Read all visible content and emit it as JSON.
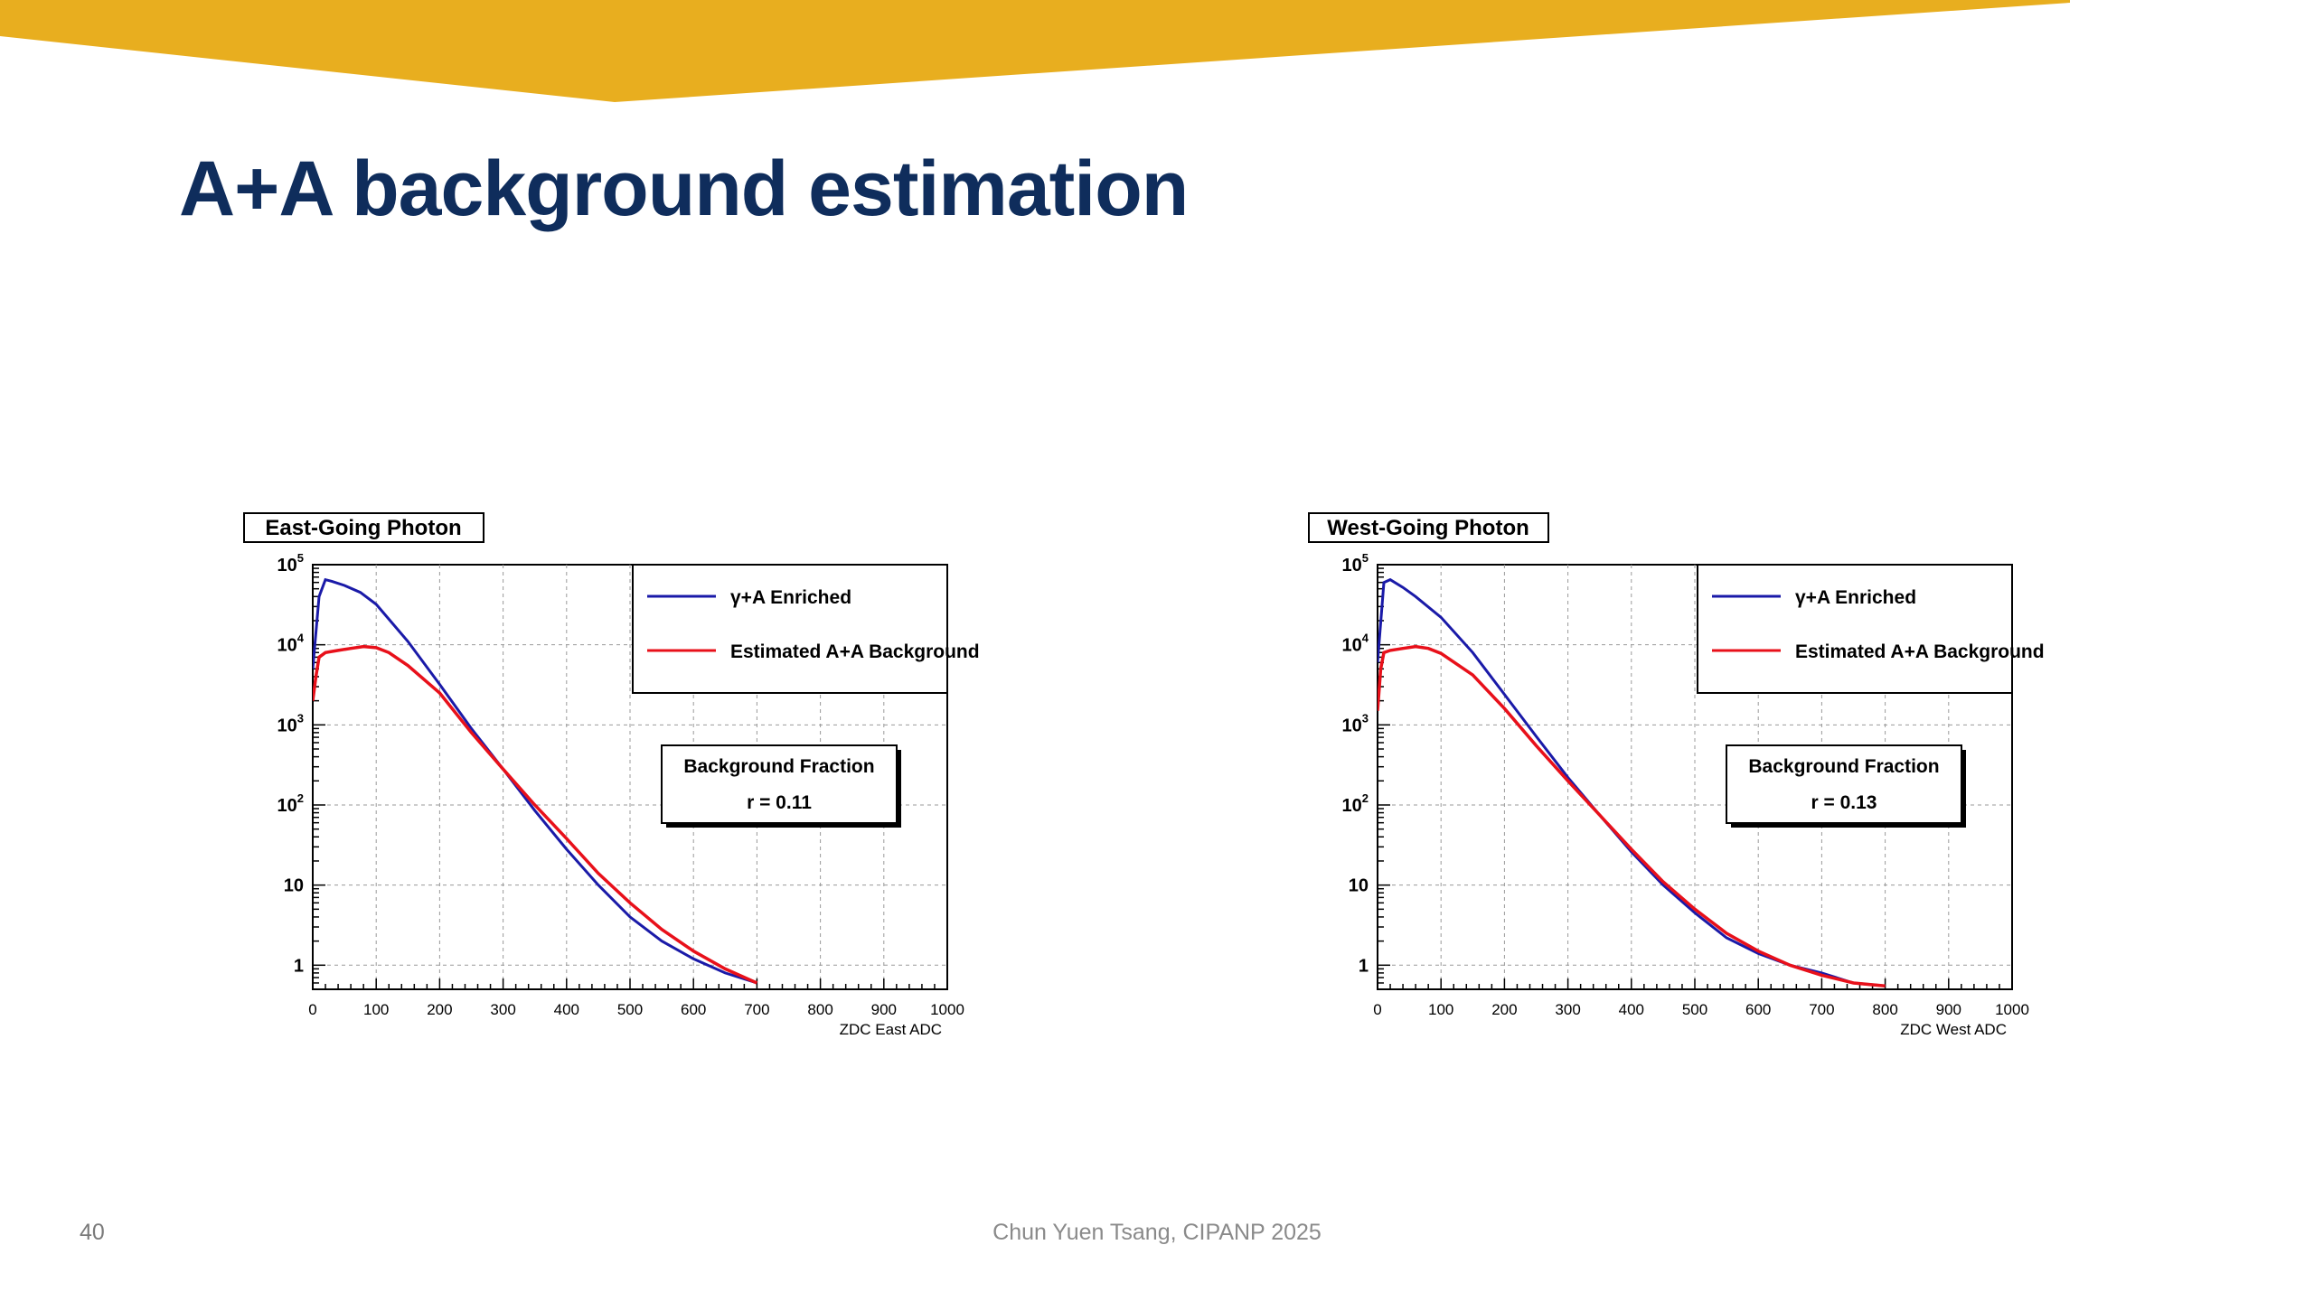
{
  "slide": {
    "title": "A+A background estimation",
    "page_number": "40",
    "footer": "Chun Yuen Tsang, CIPANP 2025",
    "colors": {
      "banner": "#e8ae1f",
      "title": "#0f2d5c"
    }
  },
  "chart_data": [
    {
      "type": "line",
      "title": "East-Going Photon",
      "xlabel": "ZDC East ADC",
      "ylabel": "",
      "xlim": [
        0,
        1000
      ],
      "ylim": [
        0.5,
        100000
      ],
      "y_scale": "log",
      "x_ticks": [
        "0",
        "100",
        "200",
        "300",
        "400",
        "500",
        "600",
        "700",
        "800",
        "900",
        "1000"
      ],
      "y_ticks": [
        {
          "value": 100000,
          "base": "10",
          "exp": "5"
        },
        {
          "value": 10000,
          "base": "10",
          "exp": "4"
        },
        {
          "value": 1000,
          "base": "10",
          "exp": "3"
        },
        {
          "value": 100,
          "base": "10",
          "exp": "2"
        },
        {
          "value": 10,
          "base": "10",
          "exp": ""
        },
        {
          "value": 1,
          "base": "1",
          "exp": ""
        }
      ],
      "grid": true,
      "legend_position": "top-right",
      "series": [
        {
          "name": "γ+A Enriched",
          "color": "#1a1aa8",
          "x": [
            0,
            10,
            20,
            30,
            50,
            75,
            100,
            150,
            200,
            250,
            300,
            350,
            400,
            450,
            500,
            550,
            600,
            650,
            700
          ],
          "y": [
            5000,
            40000,
            65000,
            62000,
            55000,
            45000,
            32000,
            11000,
            3200,
            900,
            280,
            85,
            28,
            10,
            4,
            2,
            1.2,
            0.8,
            0.6
          ]
        },
        {
          "name": "Estimated A+A Background",
          "color": "#e8101a",
          "x": [
            0,
            5,
            10,
            20,
            40,
            60,
            80,
            100,
            120,
            150,
            200,
            250,
            300,
            350,
            400,
            450,
            500,
            550,
            600,
            650,
            700
          ],
          "y": [
            2000,
            4000,
            7000,
            8000,
            8500,
            9000,
            9500,
            9200,
            8000,
            5500,
            2500,
            800,
            280,
            100,
            38,
            14,
            6,
            2.8,
            1.5,
            0.9,
            0.6
          ]
        }
      ],
      "annotation": {
        "title": "Background Fraction",
        "text": "r = 0.11"
      }
    },
    {
      "type": "line",
      "title": "West-Going Photon",
      "xlabel": "ZDC West ADC",
      "ylabel": "",
      "xlim": [
        0,
        1000
      ],
      "ylim": [
        0.5,
        100000
      ],
      "y_scale": "log",
      "x_ticks": [
        "0",
        "100",
        "200",
        "300",
        "400",
        "500",
        "600",
        "700",
        "800",
        "900",
        "1000"
      ],
      "y_ticks": [
        {
          "value": 100000,
          "base": "10",
          "exp": "5"
        },
        {
          "value": 10000,
          "base": "10",
          "exp": "4"
        },
        {
          "value": 1000,
          "base": "10",
          "exp": "3"
        },
        {
          "value": 100,
          "base": "10",
          "exp": "2"
        },
        {
          "value": 10,
          "base": "10",
          "exp": ""
        },
        {
          "value": 1,
          "base": "1",
          "exp": ""
        }
      ],
      "grid": true,
      "legend_position": "top-right",
      "series": [
        {
          "name": "γ+A Enriched",
          "color": "#1a1aa8",
          "x": [
            0,
            10,
            20,
            40,
            60,
            100,
            150,
            200,
            250,
            300,
            350,
            400,
            450,
            500,
            550,
            600,
            650,
            700,
            750,
            800
          ],
          "y": [
            6000,
            60000,
            65000,
            52000,
            40000,
            22000,
            8000,
            2400,
            720,
            220,
            75,
            26,
            10,
            4.5,
            2.2,
            1.4,
            1.0,
            0.8,
            0.6,
            0.55
          ]
        },
        {
          "name": "Estimated A+A Background",
          "color": "#e8101a",
          "x": [
            0,
            5,
            10,
            20,
            40,
            60,
            80,
            100,
            150,
            200,
            250,
            300,
            350,
            400,
            450,
            500,
            550,
            600,
            650,
            700,
            750,
            800
          ],
          "y": [
            1500,
            5000,
            8000,
            8500,
            9000,
            9500,
            9000,
            7800,
            4200,
            1600,
            550,
            200,
            75,
            28,
            11,
            5,
            2.5,
            1.5,
            1.0,
            0.75,
            0.6,
            0.55
          ]
        }
      ],
      "annotation": {
        "title": "Background Fraction",
        "text": "r = 0.13"
      }
    }
  ]
}
